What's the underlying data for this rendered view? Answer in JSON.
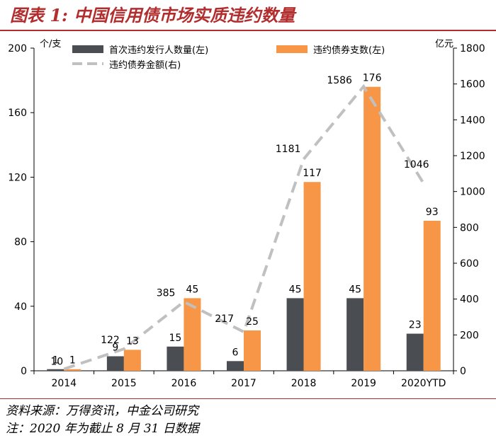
{
  "page": {
    "title": "图表 1:  中国信用债市场实质违约数量",
    "source": "资料来源：万得资讯，中金公司研究",
    "footnote": "注：2020 年为截止 8 月 31 日数据"
  },
  "colors": {
    "accent": "#b22d2d",
    "first_default": "#4a4d52",
    "bonds_default": "#f79646",
    "amount_line": "#c0c0c0"
  },
  "chart_data": {
    "type": "bar",
    "categories": [
      "2014",
      "2015",
      "2016",
      "2017",
      "2018",
      "2019",
      "2020YTD"
    ],
    "y_left": {
      "label": "个/支",
      "ticks": [
        0,
        40,
        80,
        120,
        160,
        200
      ],
      "lim": [
        0,
        200
      ]
    },
    "y_right": {
      "label": "亿元",
      "ticks": [
        0,
        200,
        400,
        600,
        800,
        1000,
        1200,
        1400,
        1600,
        1800
      ],
      "lim": [
        0,
        1800
      ]
    },
    "series": [
      {
        "name": "首次违约发行人数量(左)",
        "type": "bar",
        "axis": "left",
        "color": "#4a4d52",
        "values": [
          1,
          9,
          15,
          6,
          45,
          45,
          23
        ]
      },
      {
        "name": "违约债券支数(左)",
        "type": "bar",
        "axis": "left",
        "color": "#f79646",
        "values": [
          1,
          13,
          45,
          25,
          117,
          176,
          93
        ]
      },
      {
        "name": "违约债券金额(右)",
        "type": "line",
        "axis": "right",
        "color": "#c0c0c0",
        "dashed": true,
        "values": [
          10,
          122,
          385,
          217,
          1181,
          1586,
          1046
        ]
      }
    ]
  }
}
